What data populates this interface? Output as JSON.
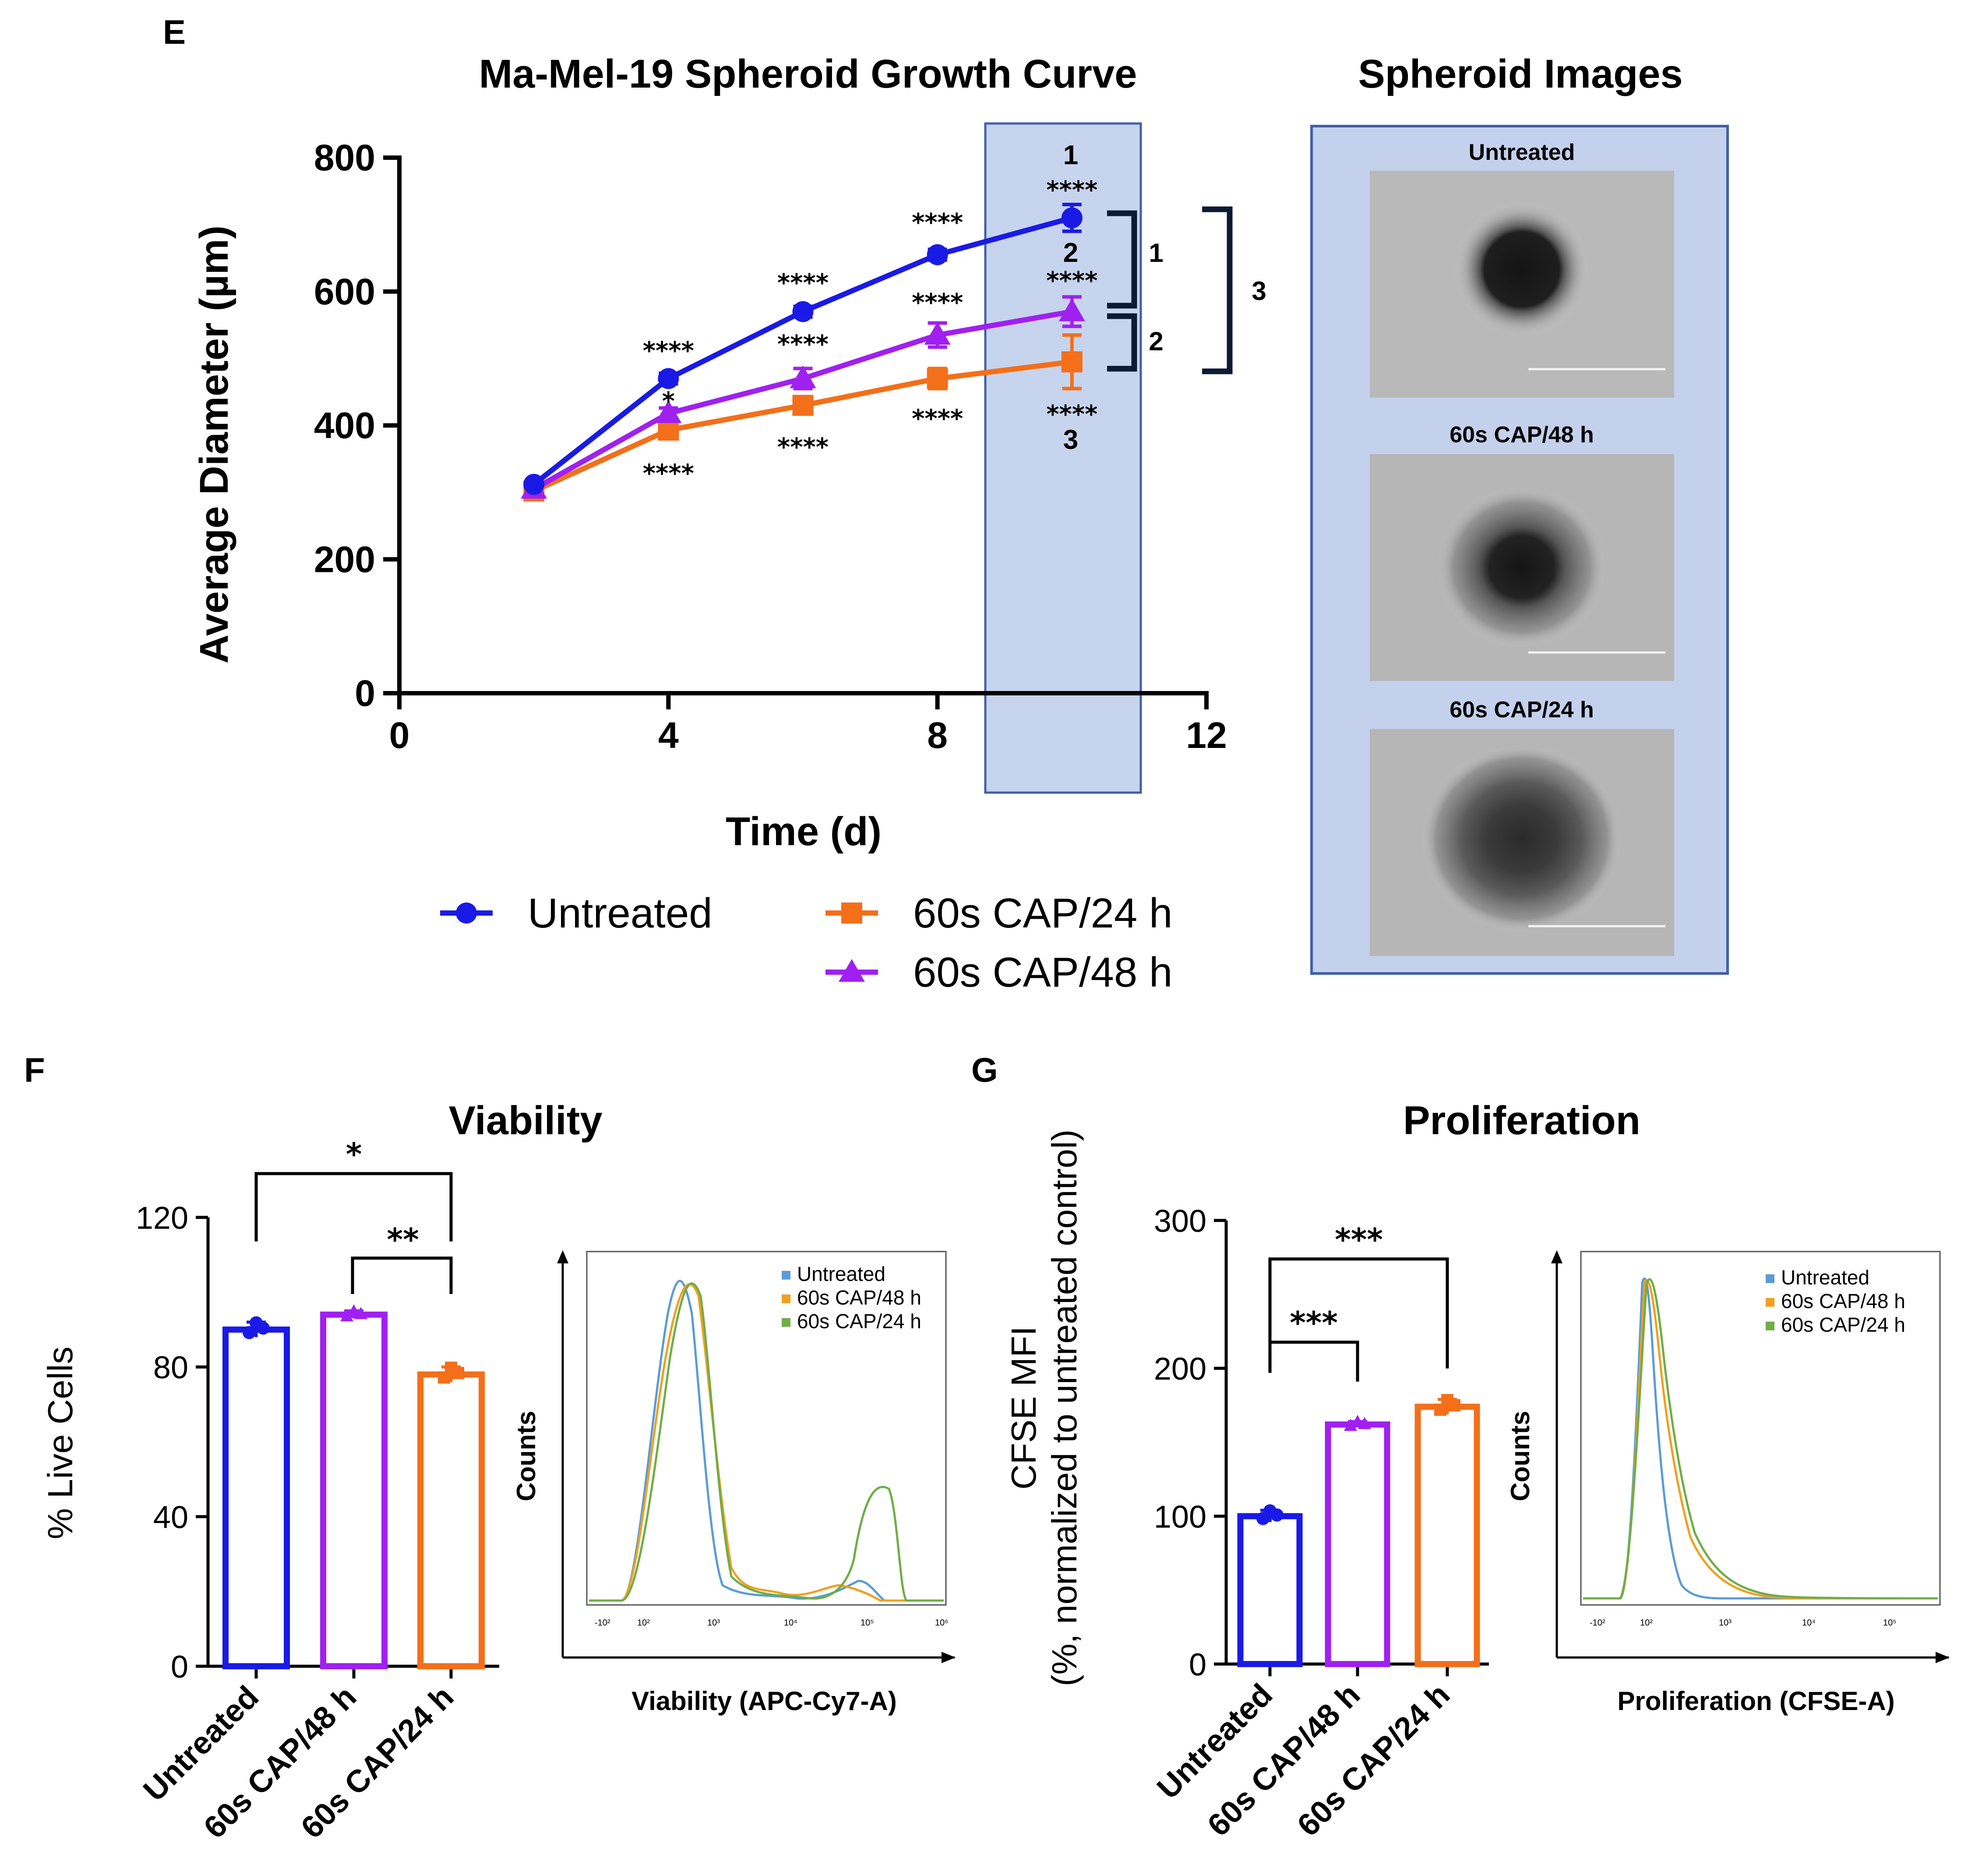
{
  "panels": {
    "E": {
      "letter": "E",
      "title": "Ma-Mel-19 Spheroid Growth Curve",
      "xlabel": "Time (d)",
      "ylabel": "Average Diameter (µm)",
      "xticks": [
        "0",
        "4",
        "8",
        "12"
      ],
      "yticks": [
        "0",
        "200",
        "400",
        "600",
        "800"
      ],
      "markers_untreated": [
        "****",
        "****",
        "****",
        "****"
      ],
      "markers_48h": [
        "*",
        "****",
        "****",
        "****"
      ],
      "markers_24h": [
        "****",
        "****",
        "****",
        "****"
      ],
      "highlight_labels": [
        "1",
        "2",
        "3"
      ],
      "bracket_labels": [
        "1",
        "2",
        "3"
      ]
    },
    "images": {
      "title": "Spheroid Images",
      "labels": [
        "Untreated",
        "60s CAP/48 h",
        "60s CAP/24 h"
      ]
    },
    "F": {
      "letter": "F",
      "title": "Viability",
      "ylabel": "% Live Cells",
      "yticks": [
        "0",
        "40",
        "80",
        "120"
      ],
      "categories": [
        "Untreated",
        "60s CAP/48 h",
        "60s CAP/24 h"
      ],
      "sig_top": "*",
      "sig_inner": "**",
      "flow_xlabel": "Viability (APC-Cy7-A)",
      "flow_ylabel": "Counts",
      "flow_legend": [
        "Untreated",
        "60s CAP/48 h",
        "60s CAP/24 h"
      ],
      "flow_ticks": [
        "-10²",
        "10²",
        "10³",
        "10⁴",
        "10⁵",
        "10⁶"
      ]
    },
    "G": {
      "letter": "G",
      "title": "Proliferation",
      "ylabel_line1": "CFSE MFI",
      "ylabel_line2": "(%, normalized to untreated control)",
      "yticks": [
        "0",
        "100",
        "200",
        "300"
      ],
      "categories": [
        "Untreated",
        "60s CAP/48 h",
        "60s CAP/24 h"
      ],
      "sig_top": "***",
      "sig_inner": "***",
      "flow_xlabel": "Proliferation (CFSE-A)",
      "flow_ylabel": "Counts",
      "flow_legend": [
        "Untreated",
        "60s CAP/48 h",
        "60s CAP/24 h"
      ],
      "flow_ticks": [
        "-10²",
        "10²",
        "10³",
        "10⁴",
        "10⁵"
      ]
    }
  },
  "legend": {
    "untreated": "Untreated",
    "cap24": "60s CAP/24 h",
    "cap48": "60s CAP/48 h"
  },
  "colors": {
    "untreated": "#1a1ae6",
    "cap48": "#a020f0",
    "cap24": "#f36f1a",
    "highlight": "#b4c6e7",
    "flow_untreated": "#5b9bd5",
    "flow_48": "#f0a020",
    "flow_24": "#70ad47"
  },
  "chart_data": [
    {
      "type": "line",
      "title": "Ma-Mel-19 Spheroid Growth Curve",
      "xlabel": "Time (d)",
      "ylabel": "Average Diameter (µm)",
      "xlim": [
        0,
        12
      ],
      "ylim": [
        0,
        800
      ],
      "x": [
        2,
        4,
        6,
        8,
        10
      ],
      "series": [
        {
          "name": "Untreated",
          "values": [
            312,
            470,
            570,
            655,
            710
          ],
          "error": [
            5,
            8,
            8,
            8,
            20
          ]
        },
        {
          "name": "60s CAP/48 h",
          "values": [
            305,
            418,
            470,
            535,
            570
          ],
          "error": [
            5,
            8,
            15,
            18,
            22
          ]
        },
        {
          "name": "60s CAP/24 h",
          "values": [
            302,
            393,
            430,
            470,
            495
          ],
          "error": [
            5,
            8,
            10,
            15,
            40
          ]
        }
      ]
    },
    {
      "type": "bar",
      "title": "Viability",
      "ylabel": "% Live Cells",
      "ylim": [
        0,
        120
      ],
      "categories": [
        "Untreated",
        "60s CAP/48 h",
        "60s CAP/24 h"
      ],
      "values": [
        90,
        94,
        78
      ],
      "error": [
        2,
        1,
        2
      ]
    },
    {
      "type": "bar",
      "title": "Proliferation",
      "ylabel": "CFSE MFI (%, normalized to untreated control)",
      "ylim": [
        0,
        300
      ],
      "categories": [
        "Untreated",
        "60s CAP/48 h",
        "60s CAP/24 h"
      ],
      "values": [
        100,
        162,
        174
      ],
      "error": [
        4,
        2,
        5
      ]
    }
  ]
}
